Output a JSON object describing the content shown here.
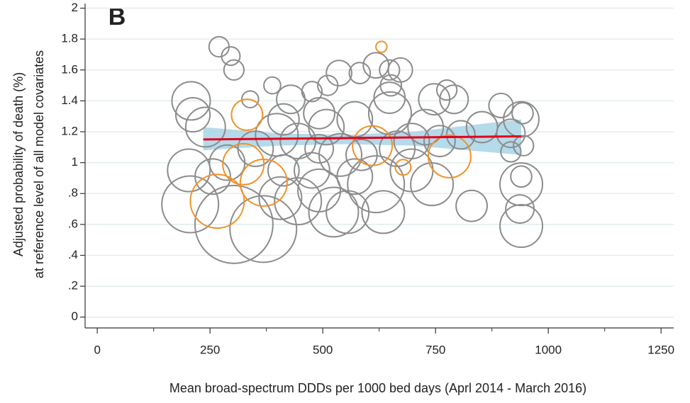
{
  "chart_data": {
    "type": "bubble",
    "annotation": "B",
    "xlabel": "Mean broad-spectrum DDDs per 1000 bed days (Aprl 2014 - March 2016)",
    "ylabel": [
      "Adjusted probability of death (%)",
      "at reference level of all model covariates"
    ],
    "xlim": [
      -27,
      1278
    ],
    "xticks": [
      0,
      250,
      500,
      750,
      1000,
      1250
    ],
    "xticks_minor": [
      125,
      375,
      625,
      875,
      1125
    ],
    "ylim": [
      -0.07,
      2.03
    ],
    "yticks": [
      0,
      {
        "value": 0.2,
        "label": ".2"
      },
      {
        "value": 0.4,
        "label": ".4"
      },
      {
        "value": 0.6,
        "label": ".6"
      },
      {
        "value": 0.8,
        "label": ".8"
      },
      1,
      1.2,
      1.4,
      1.6,
      1.8,
      2
    ],
    "grid": true,
    "series": [
      {
        "color": "#8c8c8c",
        "x": [
          270,
          296,
          303,
          208,
          212,
          206,
          303,
          368,
          203,
          240,
          339,
          388,
          429,
          476,
          511,
          536,
          582,
          618,
          648,
          672,
          651,
          648,
          747,
          775,
          791,
          895,
          943,
          940,
          917,
          945,
          917,
          940,
          940,
          937,
          940,
          830,
          742,
          697,
          618,
          524,
          555,
          445,
          406,
          492,
          476,
          539,
          445,
          398,
          508,
          571,
          649,
          697,
          806,
          728,
          492,
          413,
          288,
          256,
          351,
          586,
          665,
          759,
          853,
          492,
          413,
          634,
          571
        ],
        "values": [
          1.75,
          1.69,
          1.6,
          1.4,
          1.31,
          0.73,
          0.6,
          0.57,
          0.95,
          1.23,
          1.41,
          1.5,
          1.41,
          1.46,
          1.5,
          1.58,
          1.58,
          1.63,
          1.6,
          1.6,
          1.5,
          1.42,
          1.41,
          1.47,
          1.41,
          1.37,
          1.32,
          1.28,
          1.19,
          1.11,
          1.07,
          0.91,
          0.86,
          0.7,
          0.59,
          0.72,
          0.86,
          0.95,
          0.86,
          0.68,
          0.68,
          0.75,
          0.77,
          0.82,
          0.95,
          1.05,
          1.14,
          1.18,
          1.23,
          1.28,
          1.32,
          1.14,
          1.18,
          1.23,
          1.32,
          1.28,
          1.0,
          0.91,
          1.09,
          1.05,
          1.09,
          1.14,
          1.23,
          1.09,
          0.95,
          0.68,
          0.91
        ],
        "sizes": [
          20,
          17,
          20,
          73,
          58,
          160,
          302,
          221,
          90,
          78,
          14,
          14,
          40,
          20,
          20,
          32,
          22,
          32,
          20,
          29,
          22,
          48,
          48,
          20,
          40,
          29,
          22,
          62,
          40,
          20,
          20,
          22,
          90,
          40,
          90,
          48,
          90,
          90,
          160,
          122,
          90,
          109,
          90,
          90,
          62,
          90,
          62,
          90,
          62,
          62,
          90,
          62,
          40,
          62,
          48,
          48,
          62,
          62,
          62,
          48,
          62,
          48,
          48,
          40,
          48,
          90,
          62
        ]
      },
      {
        "color": "#f0922a",
        "x": [
          266,
          332,
          324,
          369,
          630,
          610,
          678,
          781
        ],
        "values": [
          0.75,
          1.31,
          0.99,
          0.87,
          1.75,
          1.11,
          0.97,
          1.04
        ],
        "sizes": [
          144,
          48,
          84,
          109,
          6,
          78,
          12,
          90
        ]
      }
    ],
    "ci": {
      "x": [
        235,
        400,
        550,
        700,
        940
      ],
      "lower": [
        1.08,
        1.11,
        1.12,
        1.11,
        1.05
      ],
      "upper": [
        1.23,
        1.19,
        1.18,
        1.2,
        1.28
      ],
      "color": "#a8d3e6"
    },
    "fit": {
      "x": [
        235,
        940
      ],
      "values": [
        1.15,
        1.17
      ],
      "color": "#e3001b"
    }
  }
}
